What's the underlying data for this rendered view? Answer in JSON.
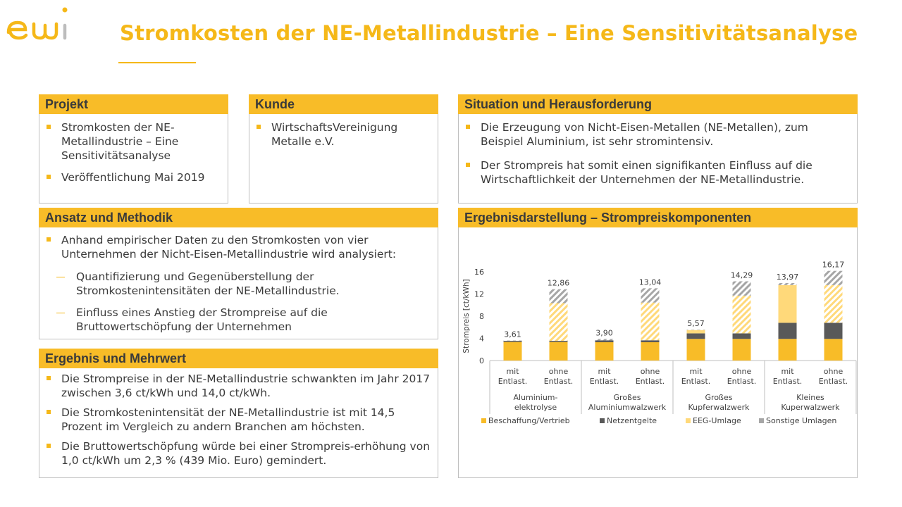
{
  "logo": {
    "text": "ewi"
  },
  "title": "Stromkosten der NE-Metallindustrie – Eine Sensitivitätsanalyse",
  "projekt": {
    "header": "Projekt",
    "items": [
      "Stromkosten der NE-Metallindustrie – Eine Sensitivitätsanalyse",
      "Veröffentlichung Mai 2019"
    ]
  },
  "kunde": {
    "header": "Kunde",
    "items": [
      "WirtschaftsVereinigung Metalle e.V."
    ]
  },
  "situation": {
    "header": "Situation und Herausforderung",
    "items": [
      "Die Erzeugung von Nicht-Eisen-Metallen (NE-Metallen), zum Beispiel Aluminium, ist sehr stromintensiv.",
      "Der Strompreis hat somit einen signifikanten Einfluss auf die Wirtschaftlichkeit der Unternehmen der NE-Metallindustrie."
    ]
  },
  "ansatz": {
    "header": "Ansatz und Methodik",
    "items": [
      "Anhand empirischer Daten zu den Stromkosten von vier Unternehmen der Nicht-Eisen-Metallindustrie wird analysiert:"
    ],
    "subitems": [
      "Quantifizierung und Gegenüberstellung der Stromkostenintensitäten der NE-Metallindustrie.",
      "Einfluss eines Anstieg der Strompreise auf die Bruttowertschöpfung der Unternehmen"
    ]
  },
  "ergebnis": {
    "header": "Ergebnis und Mehrwert",
    "items": [
      "Die Strompreise in der NE-Metallindustrie schwankten im Jahr 2017 zwischen 3,6 ct/kWh und 14,0 ct/kWh.",
      "Die Stromkostenintensität der NE-Metallindustrie ist mit 14,5 Prozent im Vergleich zu andern Branchen am höchsten.",
      "Die  Bruttowertschöpfung würde  bei  einer Strompreis-erhöhung von 1,0 ct/kWh um 2,3 % (439 Mio. Euro) gemindert."
    ]
  },
  "chart_box": {
    "header": "Ergebnisdarstellung  – Strompreiskomponenten"
  },
  "colors": {
    "accent": "#f5b819",
    "header_bg": "#f8bc28",
    "beschaffung": "#f8bc28",
    "netzentgelte": "#595959",
    "eeg": "#ffd97a",
    "sonstige": "#a6a6a6"
  },
  "chart_data": {
    "type": "bar",
    "stacked": true,
    "ylabel": "Strompreis [ct/kWh]",
    "ylim": [
      0,
      16
    ],
    "yticks": [
      0,
      4,
      8,
      12,
      16
    ],
    "bar_labels": [
      "mit Entlast.",
      "ohne Entlast.",
      "mit Entlast.",
      "ohne Entlast.",
      "mit Entlast.",
      "ohne Entlast.",
      "mit Entlast.",
      "ohne Entlast."
    ],
    "groups": [
      "Aluminium-elektrolyse",
      "Großes Aluminiumwalzwerk",
      "Großes Kupferwalzwerk",
      "Kleines Kuperwalzwerk"
    ],
    "totals": [
      "3,61",
      "12,86",
      "3,90",
      "13,04",
      "5,57",
      "14,29",
      "13,97",
      "16,17"
    ],
    "hatched_bars_note": "ohne Entlast. bars show hatched EEG-Umlage and Sonstige Umlagen",
    "series": [
      {
        "name": "Beschaffung/Vertrieb",
        "values": [
          3.35,
          3.35,
          3.3,
          3.3,
          3.9,
          3.9,
          3.9,
          3.9
        ]
      },
      {
        "name": "Netzentgelte",
        "values": [
          0.2,
          0.2,
          0.35,
          0.35,
          1.0,
          1.0,
          2.9,
          2.9
        ]
      },
      {
        "name": "EEG-Umlage",
        "values": [
          0.0,
          6.8,
          0.0,
          6.8,
          0.6,
          6.8,
          6.8,
          6.8
        ]
      },
      {
        "name": "Sonstige Umlagen",
        "values": [
          0.06,
          2.51,
          0.25,
          2.59,
          0.07,
          2.59,
          0.37,
          2.57
        ]
      }
    ]
  }
}
